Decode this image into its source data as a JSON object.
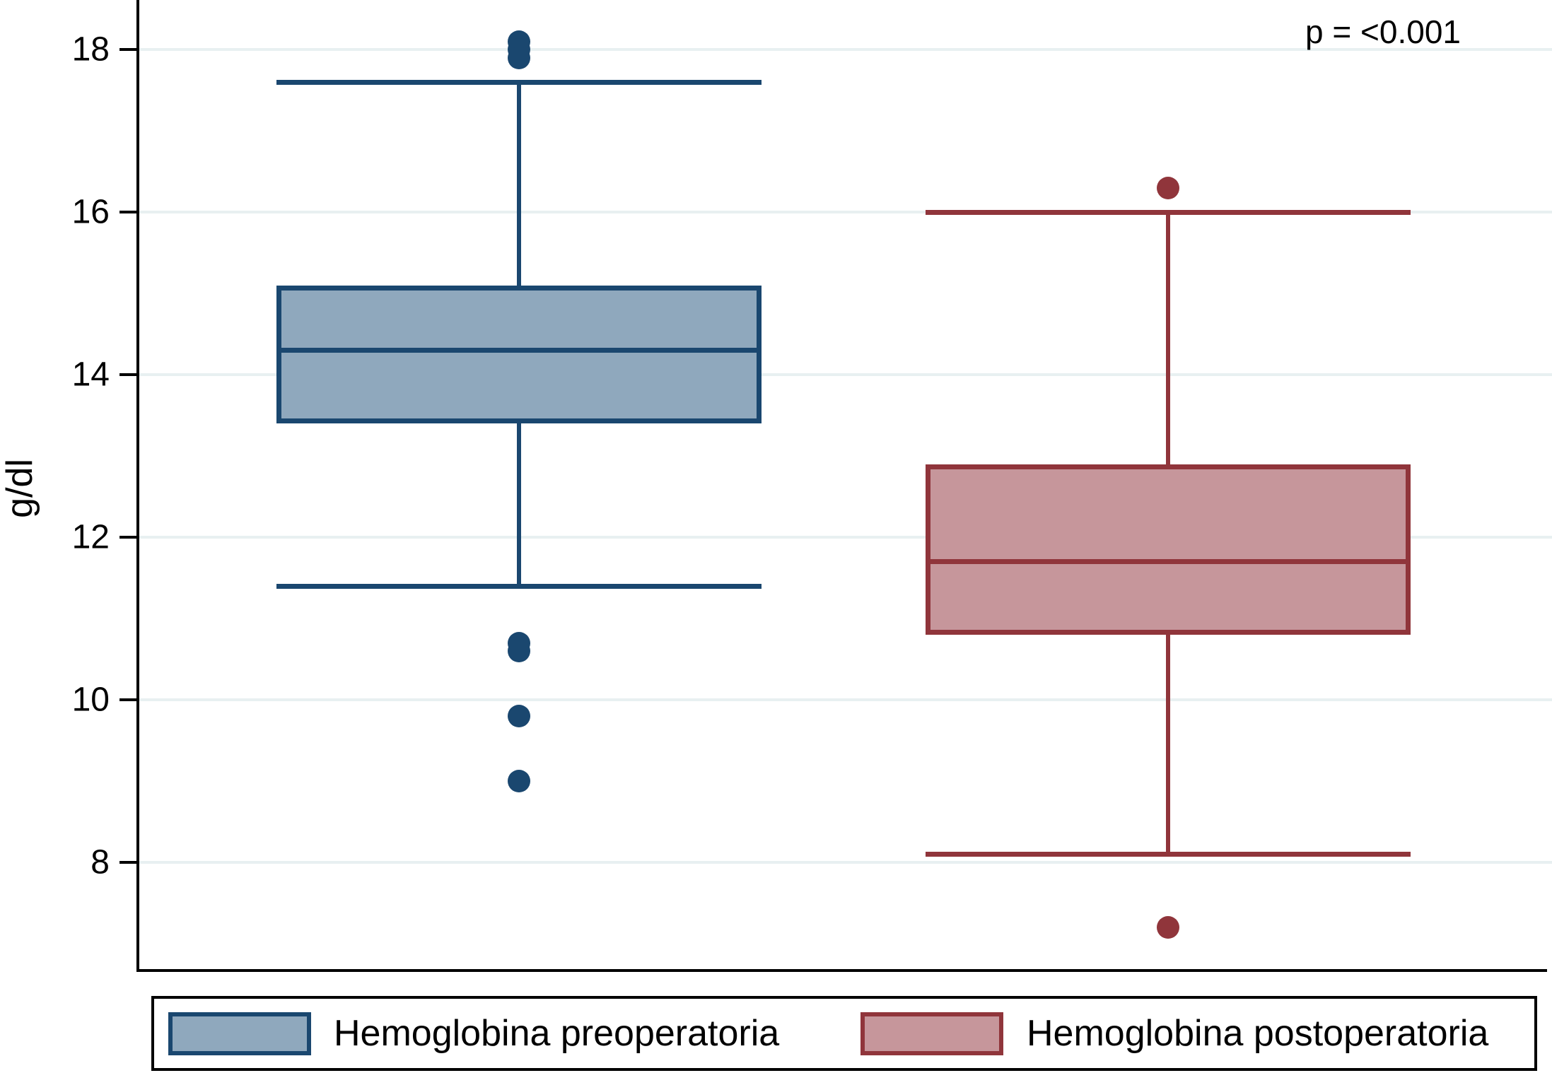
{
  "annotation": {
    "p_value_label": "p = <0.001"
  },
  "y_axis": {
    "label": "g/dl"
  },
  "legend": {
    "items": [
      {
        "label": "Hemoglobina preoperatoria"
      },
      {
        "label": "Hemoglobina postoperatoria"
      }
    ]
  },
  "chart_data": {
    "type": "box",
    "title": "",
    "ylabel": "g/dl",
    "yticks": [
      8,
      10,
      12,
      14,
      16,
      18
    ],
    "ylim": [
      6.7,
      18.6
    ],
    "grid": true,
    "gridline_color": "#e8f0f1",
    "annotation": "p = <0.001",
    "legend_position": "bottom",
    "series": [
      {
        "name": "Hemoglobina preoperatoria",
        "fill": "#8fa8bd",
        "stroke": "#1a476f",
        "q1": 13.4,
        "median": 14.3,
        "q3": 15.1,
        "whisker_low": 11.4,
        "whisker_high": 17.6,
        "outliers": [
          18.1,
          18.0,
          17.9,
          10.7,
          10.6,
          9.8,
          9.0
        ]
      },
      {
        "name": "Hemoglobina postoperatoria",
        "fill": "#c6969b",
        "stroke": "#90353b",
        "q1": 10.8,
        "median": 11.7,
        "q3": 12.9,
        "whisker_low": 8.1,
        "whisker_high": 16.0,
        "outliers": [
          16.3,
          7.2
        ]
      }
    ]
  }
}
